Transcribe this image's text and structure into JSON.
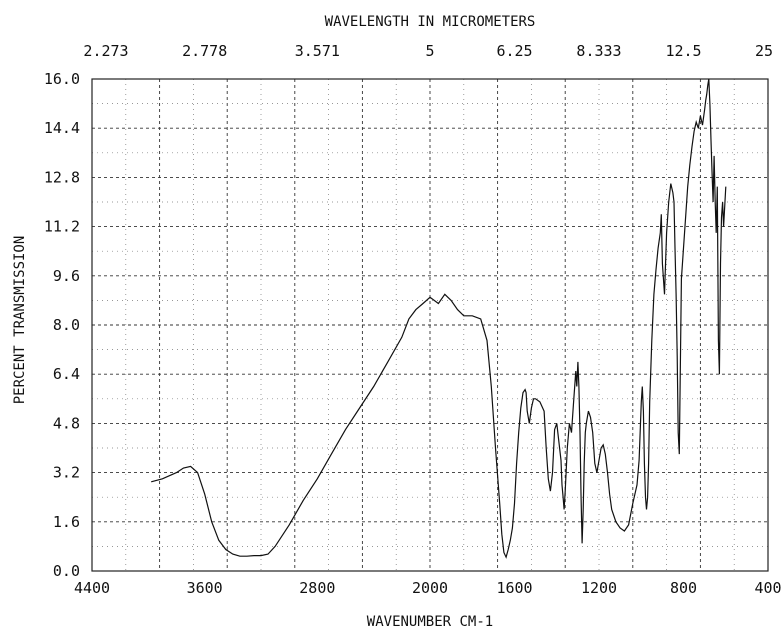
{
  "chart_data": {
    "type": "line",
    "title": "",
    "xlabel": "WAVENUMBER CM-1",
    "ylabel": "PERCENT TRANSMISSION",
    "top_axis_label": "WAVELENGTH IN MICROMETERS",
    "xlim": [
      4400,
      400
    ],
    "ylim": [
      0,
      16
    ],
    "grid": true,
    "x_tick_labels": [
      "4400",
      "3600",
      "2800",
      "2000",
      "1600",
      "1200",
      "800",
      "400"
    ],
    "y_tick_labels": [
      "0.0",
      "1.6",
      "3.2",
      "4.8",
      "6.4",
      "8.0",
      "9.6",
      "11.2",
      "12.8",
      "14.4",
      "16.0"
    ],
    "top_tick_labels": [
      "2.273",
      "2.778",
      "3.571",
      "5",
      "6.25",
      "8.333",
      "12.5",
      "25"
    ],
    "series": [
      {
        "x": [
          3980,
          3900,
          3800,
          3750,
          3700,
          3650,
          3600,
          3550,
          3500,
          3450,
          3400,
          3350,
          3300,
          3250,
          3200,
          3150,
          3100,
          3000,
          2900,
          2800,
          2700,
          2600,
          2500,
          2400,
          2300,
          2200,
          2150,
          2100,
          2050,
          2000,
          1960,
          1930,
          1900,
          1870,
          1840,
          1800,
          1760,
          1730,
          1710,
          1690,
          1670,
          1660,
          1650,
          1640,
          1630,
          1620,
          1610,
          1600,
          1590,
          1580,
          1570,
          1560,
          1550,
          1545,
          1540,
          1530,
          1520,
          1510,
          1500,
          1480,
          1460,
          1450,
          1440,
          1430,
          1420,
          1410,
          1400,
          1390,
          1380,
          1375,
          1370,
          1365,
          1360,
          1350,
          1340,
          1330,
          1320,
          1310,
          1305,
          1300,
          1295,
          1290,
          1285,
          1280,
          1275,
          1270,
          1265,
          1260,
          1250,
          1240,
          1230,
          1220,
          1210,
          1200,
          1190,
          1180,
          1170,
          1160,
          1150,
          1140,
          1120,
          1100,
          1080,
          1060,
          1040,
          1020,
          1010,
          1000,
          995,
          990,
          985,
          980,
          975,
          970,
          965,
          960,
          950,
          940,
          930,
          920,
          910,
          905,
          900,
          890,
          880,
          870,
          860,
          850,
          845,
          840,
          835,
          830,
          825,
          820,
          810,
          800,
          790,
          780,
          770,
          760,
          750,
          740,
          730,
          720,
          710,
          700,
          695,
          690,
          685,
          680,
          675,
          670,
          665,
          660,
          655,
          650,
          645,
          640,
          635,
          630,
          625,
          620,
          615,
          610,
          600
        ],
        "y": [
          2.9,
          3.0,
          3.2,
          3.35,
          3.4,
          3.2,
          2.5,
          1.6,
          1.0,
          0.7,
          0.55,
          0.48,
          0.48,
          0.5,
          0.5,
          0.55,
          0.8,
          1.5,
          2.3,
          3.0,
          3.8,
          4.6,
          5.3,
          6.0,
          6.8,
          7.6,
          8.2,
          8.5,
          8.7,
          8.9,
          8.7,
          9.0,
          8.8,
          8.5,
          8.3,
          8.3,
          8.2,
          7.5,
          6.0,
          4.0,
          2.2,
          1.2,
          0.6,
          0.45,
          0.7,
          1.0,
          1.4,
          2.2,
          3.5,
          4.5,
          5.3,
          5.8,
          5.9,
          5.8,
          5.2,
          4.8,
          5.3,
          5.6,
          5.6,
          5.5,
          5.2,
          4.0,
          3.0,
          2.6,
          3.2,
          4.6,
          4.8,
          4.2,
          3.6,
          2.8,
          2.4,
          2.0,
          2.6,
          4.0,
          4.8,
          4.5,
          5.5,
          6.5,
          6.0,
          6.8,
          6.0,
          4.5,
          2.5,
          0.9,
          2.0,
          3.5,
          4.5,
          4.8,
          5.2,
          5.0,
          4.5,
          3.5,
          3.2,
          3.6,
          4.0,
          4.1,
          3.8,
          3.2,
          2.5,
          2.0,
          1.6,
          1.4,
          1.3,
          1.5,
          2.2,
          2.8,
          3.6,
          5.5,
          6.0,
          5.2,
          3.5,
          2.4,
          2.0,
          2.4,
          3.5,
          5.5,
          7.5,
          9.0,
          9.8,
          10.5,
          11.0,
          11.6,
          10.0,
          9.0,
          11.0,
          12.0,
          12.6,
          12.3,
          12.0,
          10.5,
          9.0,
          7.0,
          4.5,
          3.8,
          9.5,
          10.5,
          11.5,
          12.5,
          13.2,
          13.8,
          14.3,
          14.6,
          14.4,
          14.8,
          14.5,
          15.0,
          15.3,
          15.5,
          15.8,
          16.0,
          15.2,
          14.0,
          13.0,
          12.0,
          13.5,
          12.0,
          11.0,
          12.5,
          7.5,
          6.4,
          10.0,
          11.5,
          12.0,
          11.2,
          12.5
        ]
      }
    ]
  }
}
